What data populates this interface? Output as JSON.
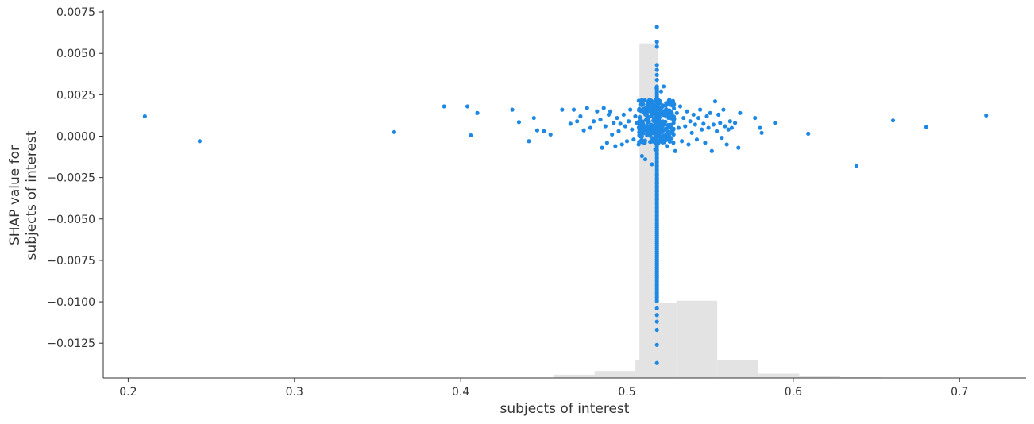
{
  "chart_data": {
    "type": "scatter",
    "title": "",
    "xlabel": "subjects of interest",
    "ylabel_lines": [
      "SHAP value for",
      "subjects of interest"
    ],
    "xlim": [
      0.185,
      0.74
    ],
    "ylim": [
      -0.0146,
      0.0076
    ],
    "xticks": [
      {
        "value": 0.2,
        "label": "0.2"
      },
      {
        "value": 0.3,
        "label": "0.3"
      },
      {
        "value": 0.4,
        "label": "0.4"
      },
      {
        "value": 0.5,
        "label": "0.5"
      },
      {
        "value": 0.6,
        "label": "0.6"
      },
      {
        "value": 0.7,
        "label": "0.7"
      }
    ],
    "yticks": [
      {
        "value": 0.0075,
        "label": "0.0075"
      },
      {
        "value": 0.005,
        "label": "0.0050"
      },
      {
        "value": 0.0025,
        "label": "0.0025"
      },
      {
        "value": 0.0,
        "label": "0.0000"
      },
      {
        "value": -0.0025,
        "label": "−0.0025"
      },
      {
        "value": -0.005,
        "label": "−0.0050"
      },
      {
        "value": -0.0075,
        "label": "−0.0075"
      },
      {
        "value": -0.01,
        "label": "−0.0100"
      },
      {
        "value": -0.0125,
        "label": "−0.0125"
      }
    ],
    "point_color": "#1e88e5",
    "histogram_color": "#e3e3e3",
    "histogram": {
      "edges": [
        0.185,
        0.2096,
        0.2342,
        0.2589,
        0.2835,
        0.3081,
        0.3327,
        0.3574,
        0.382,
        0.4066,
        0.4312,
        0.4558,
        0.4805,
        0.5051,
        0.5297,
        0.5543,
        0.579,
        0.6036,
        0.6282,
        0.6528,
        0.6774,
        0.7021,
        0.7267
      ],
      "heights": [
        0.06,
        0.06,
        0,
        0,
        0,
        0,
        0.04,
        0.04,
        0.04,
        0.04,
        0.1,
        0.9,
        1.9,
        4.9,
        21.0,
        4.8,
        1.2,
        0.5,
        0.2,
        0.1,
        0.1,
        0.06
      ],
      "fine": [
        {
          "x0": 0.5075,
          "x1": 0.5185,
          "h": 91
        },
        {
          "x0": 0.5185,
          "x1": 0.5297,
          "h": 20.5
        }
      ],
      "max": 100
    },
    "points": [
      [
        0.21,
        0.0012
      ],
      [
        0.243,
        -0.0003
      ],
      [
        0.36,
        0.00025
      ],
      [
        0.39,
        0.0018
      ],
      [
        0.404,
        0.0018
      ],
      [
        0.406,
        5e-05
      ],
      [
        0.41,
        0.0014
      ],
      [
        0.431,
        0.0016
      ],
      [
        0.435,
        0.00085
      ],
      [
        0.441,
        -0.0003
      ],
      [
        0.444,
        0.0011
      ],
      [
        0.446,
        0.00035
      ],
      [
        0.45,
        0.0003
      ],
      [
        0.454,
        0.0001
      ],
      [
        0.461,
        0.0016
      ],
      [
        0.466,
        0.00075
      ],
      [
        0.468,
        0.0016
      ],
      [
        0.47,
        0.0009
      ],
      [
        0.472,
        0.0012
      ],
      [
        0.474,
        0.00035
      ],
      [
        0.476,
        0.0017
      ],
      [
        0.478,
        0.0005
      ],
      [
        0.48,
        0.0009
      ],
      [
        0.482,
        0.0015
      ],
      [
        0.484,
        0.001
      ],
      [
        0.485,
        -0.0007
      ],
      [
        0.486,
        0.0017
      ],
      [
        0.487,
        0.0006
      ],
      [
        0.488,
        -0.0004
      ],
      [
        0.489,
        0.0013
      ],
      [
        0.49,
        0.0015
      ],
      [
        0.491,
        0.0001
      ],
      [
        0.492,
        0.0008
      ],
      [
        0.493,
        -0.0006
      ],
      [
        0.494,
        0.0011
      ],
      [
        0.495,
        0.0003
      ],
      [
        0.496,
        0.00075
      ],
      [
        0.497,
        -0.0005
      ],
      [
        0.498,
        0.0013
      ],
      [
        0.499,
        0.0006
      ],
      [
        0.5,
        -0.0003
      ],
      [
        0.501,
        0.0009
      ],
      [
        0.502,
        0.0016
      ],
      [
        0.503,
        0.0004
      ],
      [
        0.504,
        -0.0002
      ],
      [
        0.505,
        0.0012
      ],
      [
        0.506,
        0.0008
      ],
      [
        0.507,
        -0.0005
      ],
      [
        0.508,
        0.0019
      ],
      [
        0.509,
        -0.0012
      ],
      [
        0.51,
        0.0003
      ],
      [
        0.511,
        -0.0014
      ],
      [
        0.512,
        0.0015
      ],
      [
        0.513,
        0.00095
      ],
      [
        0.514,
        0.0003
      ],
      [
        0.515,
        -0.0017
      ],
      [
        0.5155,
        0.0018
      ],
      [
        0.516,
        0.0005
      ],
      [
        0.5165,
        0.0011
      ],
      [
        0.517,
        -0.0008
      ],
      [
        0.5175,
        0.0014
      ],
      [
        0.5178,
        0.0029
      ],
      [
        0.5182,
        0.0003
      ],
      [
        0.5186,
        0.0016
      ],
      [
        0.519,
        -0.0004
      ],
      [
        0.5195,
        0.0021
      ],
      [
        0.5198,
        0.0009
      ],
      [
        0.5202,
        0.0014
      ],
      [
        0.5205,
        0.0027
      ],
      [
        0.521,
        0.0004
      ],
      [
        0.5215,
        0.0018
      ],
      [
        0.522,
        0.003
      ],
      [
        0.5225,
        0.0007
      ],
      [
        0.523,
        0.0013
      ],
      [
        0.524,
        -0.0006
      ],
      [
        0.525,
        0.0011
      ],
      [
        0.526,
        0.0019
      ],
      [
        0.527,
        0.0002
      ],
      [
        0.528,
        0.0008
      ],
      [
        0.529,
        -0.0009
      ],
      [
        0.53,
        0.0014
      ],
      [
        0.531,
        0.0005
      ],
      [
        0.532,
        0.0018
      ],
      [
        0.533,
        -0.0003
      ],
      [
        0.534,
        0.0011
      ],
      [
        0.535,
        0.0006
      ],
      [
        0.536,
        0.0015
      ],
      [
        0.537,
        -0.0005
      ],
      [
        0.538,
        0.0009
      ],
      [
        0.539,
        0.0002
      ],
      [
        0.54,
        0.0013
      ],
      [
        0.541,
        0.0007
      ],
      [
        0.542,
        -0.0002
      ],
      [
        0.543,
        0.0011
      ],
      [
        0.544,
        0.0016
      ],
      [
        0.545,
        0.0004
      ],
      [
        0.546,
        0.00075
      ],
      [
        0.547,
        -0.0004
      ],
      [
        0.548,
        0.0012
      ],
      [
        0.549,
        0.0005
      ],
      [
        0.55,
        0.0014
      ],
      [
        0.551,
        -0.0009
      ],
      [
        0.552,
        0.0007
      ],
      [
        0.553,
        0.0021
      ],
      [
        0.554,
        0.0003
      ],
      [
        0.555,
        0.0013
      ],
      [
        0.556,
        0.0008
      ],
      [
        0.557,
        -0.0001
      ],
      [
        0.558,
        0.0016
      ],
      [
        0.559,
        0.0006
      ],
      [
        0.56,
        -0.0005
      ],
      [
        0.561,
        0.0004
      ],
      [
        0.562,
        0.0009
      ],
      [
        0.563,
        0.0005
      ],
      [
        0.565,
        0.0008
      ],
      [
        0.567,
        -0.0007
      ],
      [
        0.568,
        0.0014
      ],
      [
        0.577,
        0.0011
      ],
      [
        0.58,
        0.0005
      ],
      [
        0.581,
        0.0002
      ],
      [
        0.589,
        0.0008
      ],
      [
        0.609,
        0.00015
      ],
      [
        0.638,
        -0.0018
      ],
      [
        0.66,
        0.00095
      ],
      [
        0.68,
        0.00055
      ],
      [
        0.716,
        0.00125
      ],
      [
        0.518,
        0.0066
      ],
      [
        0.518,
        0.0057
      ],
      [
        0.518,
        0.0054
      ],
      [
        0.518,
        0.0043
      ],
      [
        0.518,
        0.004
      ],
      [
        0.518,
        0.0037
      ],
      [
        0.518,
        0.0034
      ],
      [
        0.518,
        -0.0104
      ],
      [
        0.518,
        -0.0108
      ],
      [
        0.518,
        -0.0112
      ],
      [
        0.518,
        -0.0117
      ],
      [
        0.518,
        -0.0126
      ],
      [
        0.518,
        -0.0137
      ]
    ]
  }
}
